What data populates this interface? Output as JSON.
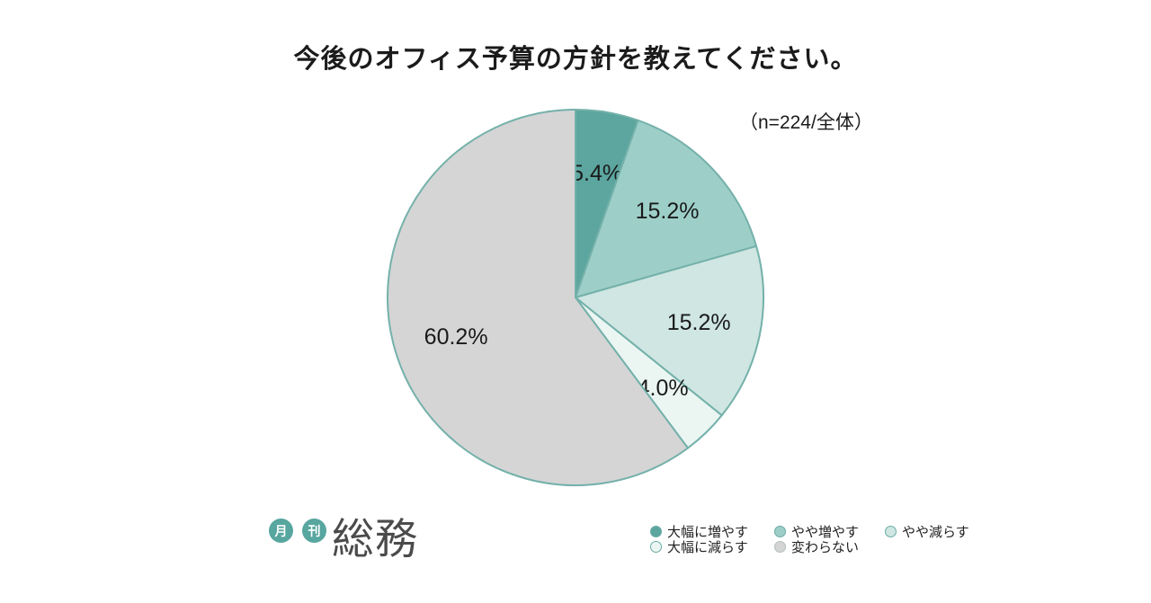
{
  "title": "今後のオフィス予算の方針を教えてください。",
  "sample_note": "（n=224/全体）",
  "chart_data": {
    "type": "pie",
    "title": "今後のオフィス予算の方針を教えてください。",
    "start_angle_deg": 0,
    "direction": "clockwise",
    "total": 100.0,
    "slices": [
      {
        "label": "大幅に増やす",
        "value": 5.4,
        "display": "5.4%",
        "color": "#5ca69f",
        "legend_border": "#6aaca5"
      },
      {
        "label": "やや増やす",
        "value": 15.2,
        "display": "15.2%",
        "color": "#9dcfc8",
        "legend_border": "#6aaca5"
      },
      {
        "label": "やや減らす",
        "value": 15.2,
        "display": "15.2%",
        "color": "#cfe6e2",
        "legend_border": "#6aaca5"
      },
      {
        "label": "大幅に減らす",
        "value": 4.0,
        "display": "4.0%",
        "color": "#ebf6f3",
        "legend_border": "#6aaca5"
      },
      {
        "label": "変わらない",
        "value": 60.2,
        "display": "60.2%",
        "color": "#d5d5d5",
        "legend_border": "#b3bfbd"
      }
    ],
    "stroke_color": "#74b1aa",
    "label_color": "#1a1a1a",
    "legend_position": "bottom-right"
  },
  "logo": {
    "badge1": "月",
    "badge2": "刊",
    "wordmark": "総務",
    "badge_color": "#57a69f",
    "wordmark_color": "#4b4b4b"
  }
}
